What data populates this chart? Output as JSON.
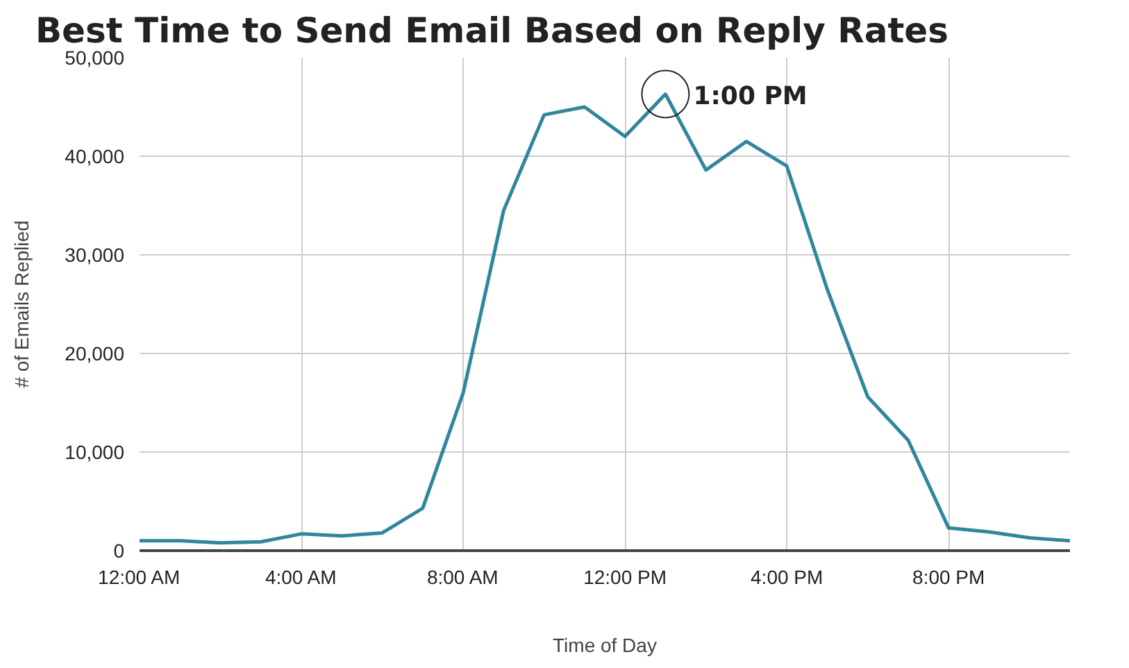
{
  "chart_data": {
    "type": "line",
    "title": "Best Time to Send Email Based on Reply Rates",
    "xlabel": "Time of Day",
    "ylabel": "# of Emails Replied",
    "x": [
      0,
      1,
      2,
      3,
      4,
      5,
      6,
      7,
      8,
      9,
      10,
      11,
      12,
      13,
      14,
      15,
      16,
      17,
      18,
      19,
      20,
      21,
      22,
      23
    ],
    "series": [
      {
        "color": "#30869e",
        "values": [
          1000,
          1000,
          800,
          900,
          1700,
          1500,
          1800,
          4300,
          16000,
          34500,
          44200,
          45000,
          42000,
          46300,
          38600,
          41500,
          39000,
          26500,
          15600,
          11200,
          2300,
          1900,
          1300,
          1000
        ]
      }
    ],
    "xlim": [
      0,
      23
    ],
    "xticks": [
      {
        "value": 0,
        "label": "12:00 AM"
      },
      {
        "value": 4,
        "label": "4:00 AM"
      },
      {
        "value": 8,
        "label": "8:00 AM"
      },
      {
        "value": 12,
        "label": "12:00 PM"
      },
      {
        "value": 16,
        "label": "4:00 PM"
      },
      {
        "value": 20,
        "label": "8:00 PM"
      }
    ],
    "ylim": [
      0,
      50000
    ],
    "yticks": [
      {
        "value": 0,
        "label": "0"
      },
      {
        "value": 10000,
        "label": "10,000"
      },
      {
        "value": 20000,
        "label": "20,000"
      },
      {
        "value": 30000,
        "label": "30,000"
      },
      {
        "value": 40000,
        "label": "40,000"
      },
      {
        "value": 50000,
        "label": "50,000"
      }
    ],
    "annotations": [
      {
        "text": "1:00 PM",
        "x": 13,
        "y": 46300
      }
    ],
    "grid": true,
    "marker": "none",
    "line_style": "solid"
  }
}
